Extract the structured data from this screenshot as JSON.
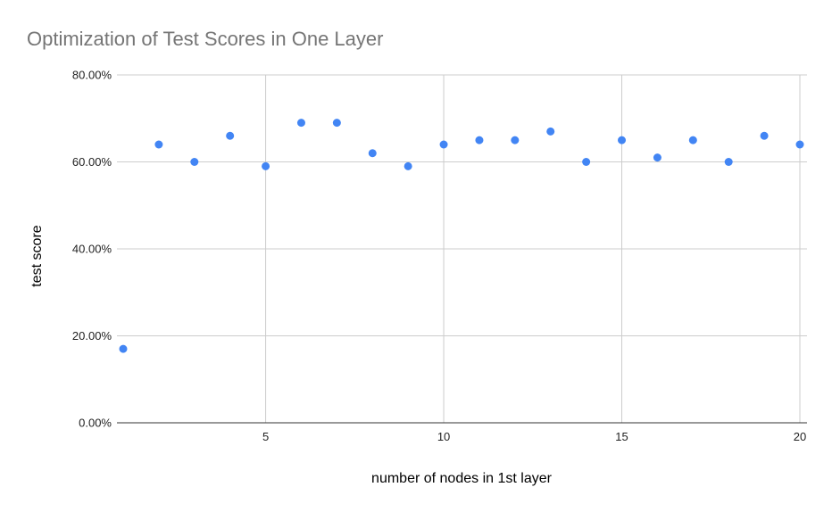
{
  "chart_data": {
    "type": "scatter",
    "title": "Optimization of Test Scores in One Layer",
    "xlabel": "number of nodes in 1st layer",
    "ylabel": "test score",
    "xlim": [
      1,
      20
    ],
    "ylim": [
      0,
      0.8
    ],
    "x_ticks": [
      5,
      10,
      15,
      20
    ],
    "x_tick_labels": [
      "5",
      "10",
      "15",
      "20"
    ],
    "y_ticks": [
      0,
      0.2,
      0.4,
      0.6,
      0.8
    ],
    "y_tick_labels": [
      "0.00%",
      "20.00%",
      "40.00%",
      "60.00%",
      "80.00%"
    ],
    "grid": true,
    "series": [
      {
        "color": "#4285f4",
        "points": [
          {
            "x": 1,
            "y": 0.17
          },
          {
            "x": 2,
            "y": 0.64
          },
          {
            "x": 3,
            "y": 0.6
          },
          {
            "x": 4,
            "y": 0.66
          },
          {
            "x": 5,
            "y": 0.59
          },
          {
            "x": 6,
            "y": 0.69
          },
          {
            "x": 7,
            "y": 0.69
          },
          {
            "x": 8,
            "y": 0.62
          },
          {
            "x": 9,
            "y": 0.59
          },
          {
            "x": 10,
            "y": 0.64
          },
          {
            "x": 11,
            "y": 0.65
          },
          {
            "x": 12,
            "y": 0.65
          },
          {
            "x": 13,
            "y": 0.67
          },
          {
            "x": 14,
            "y": 0.6
          },
          {
            "x": 15,
            "y": 0.65
          },
          {
            "x": 16,
            "y": 0.61
          },
          {
            "x": 17,
            "y": 0.65
          },
          {
            "x": 18,
            "y": 0.6
          },
          {
            "x": 19,
            "y": 0.66
          },
          {
            "x": 20,
            "y": 0.64
          }
        ]
      }
    ]
  }
}
